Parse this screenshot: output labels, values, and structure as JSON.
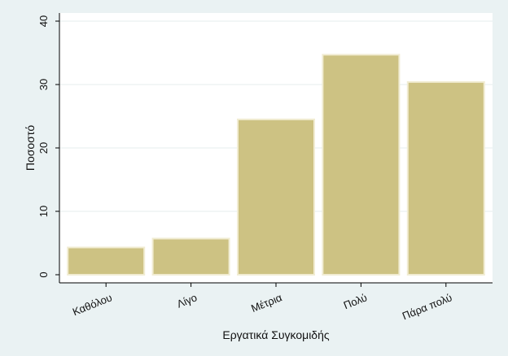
{
  "chart_data": {
    "type": "bar",
    "categories": [
      "Καθόλου",
      "Λίγο",
      "Μέτρια",
      "Πολύ",
      "Πάρα πολύ"
    ],
    "values": [
      4.3,
      5.7,
      24.5,
      34.7,
      30.4
    ],
    "xlabel": "Εργατικά Συγκομιδής",
    "ylabel": "Ποσοστό",
    "ylim": [
      0,
      40
    ],
    "yticks": [
      0,
      10,
      20,
      30,
      40
    ],
    "grid": "horizontal",
    "bar_color": "#cdc283",
    "bar_edge_color": "#f1ecd2",
    "plot_background": "#ffffff",
    "grid_color": "#e4eeee",
    "outer_background": "#eaf2f3"
  }
}
